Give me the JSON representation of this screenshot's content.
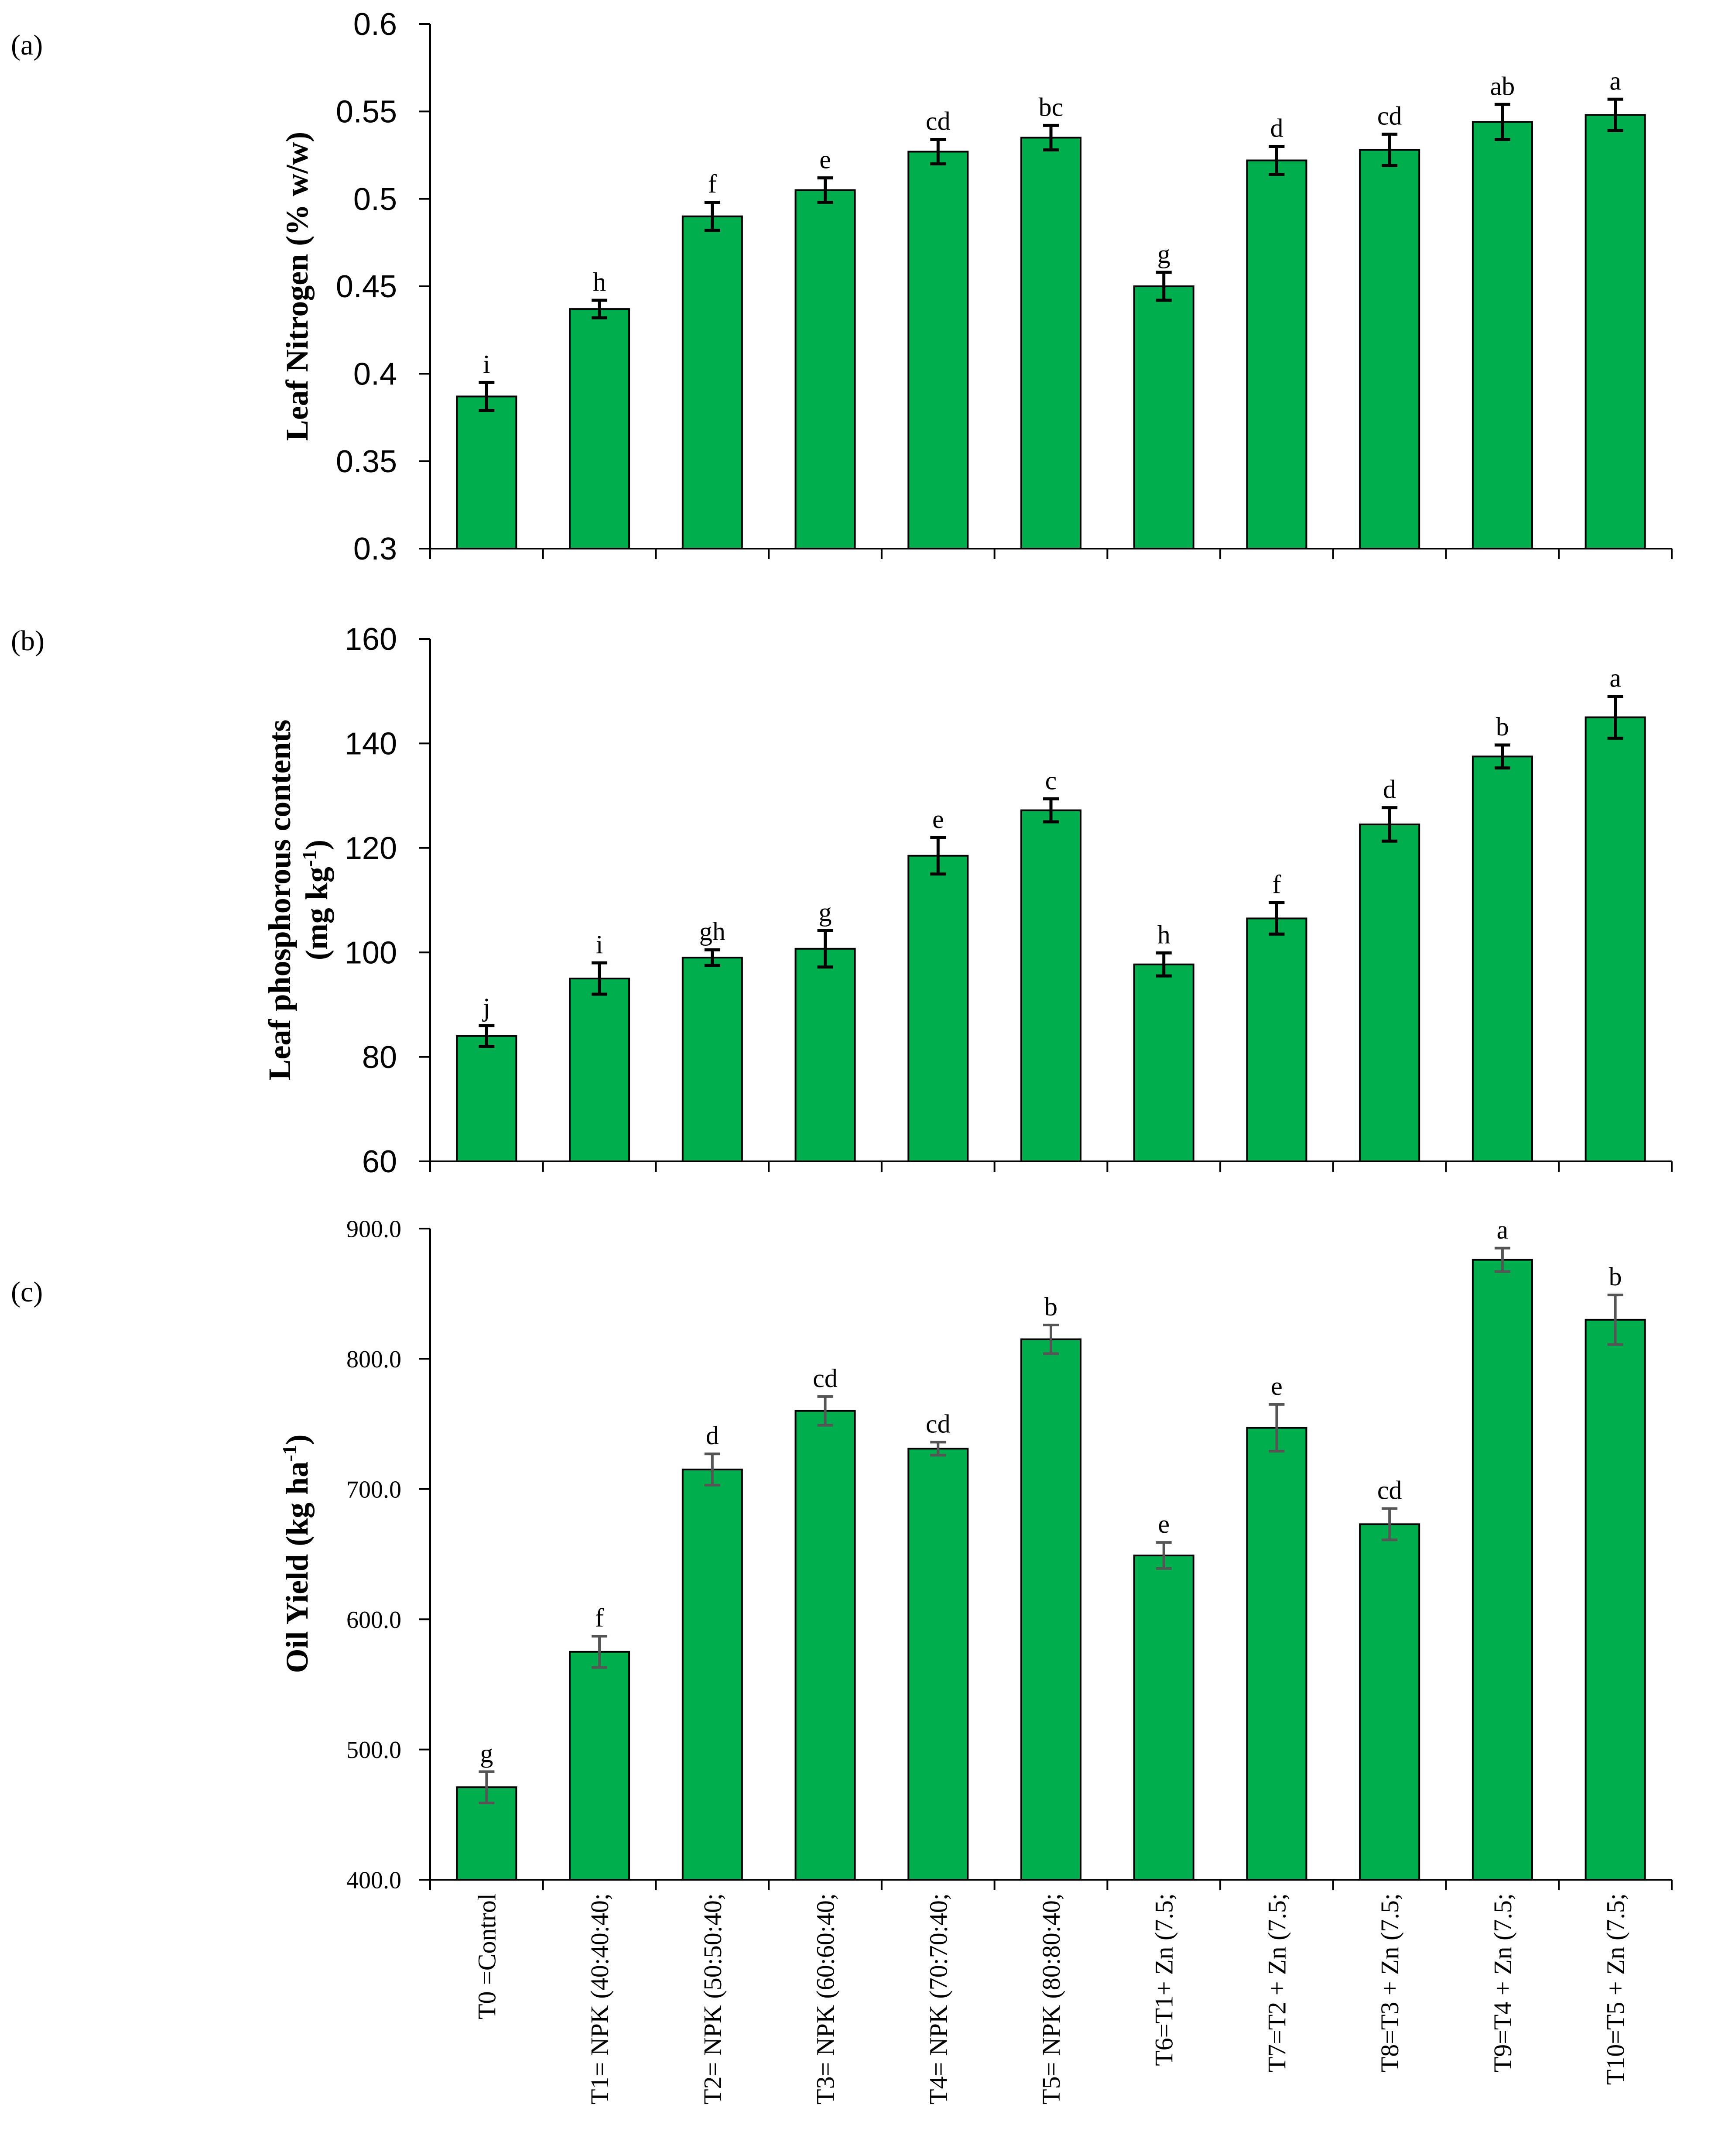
{
  "bar_color": "#00AE4D",
  "category_labels": [
    "T0 =Control",
    "T1= NPK (40:40:40;",
    "T2= NPK (50:50:40;",
    "T3= NPK (60:60:40;",
    "T4= NPK (70:70:40;",
    "T5= NPK (80:80:40;",
    "T6=T1+ Zn (7.5;",
    "T7=T2 + Zn (7.5;",
    "T8=T3 + Zn (7.5;",
    "T9=T4 + Zn (7.5;",
    "T10=T5 + Zn (7.5;"
  ],
  "chart_data": [
    {
      "type": "bar",
      "panel_label": "(a)",
      "ylabel": "Leaf Nitrogen (% w/w)",
      "ylim": [
        0.3,
        0.6
      ],
      "yticks": [
        0.3,
        0.35,
        0.4,
        0.45,
        0.5,
        0.55,
        0.6
      ],
      "ytick_labels": [
        "0.3",
        "0.35",
        "0.4",
        "0.45",
        "0.5",
        "0.55",
        "0.6"
      ],
      "categories": [
        "T0 =Control",
        "T1= NPK (40:40:40;",
        "T2= NPK (50:50:40;",
        "T3= NPK (60:60:40;",
        "T4= NPK (70:70:40;",
        "T5= NPK (80:80:40;",
        "T6=T1+ Zn (7.5;",
        "T7=T2 + Zn (7.5;",
        "T8=T3 + Zn (7.5;",
        "T9=T4 + Zn (7.5;",
        "T10=T5 + Zn (7.5;"
      ],
      "values": [
        0.387,
        0.437,
        0.49,
        0.505,
        0.527,
        0.535,
        0.45,
        0.522,
        0.528,
        0.544,
        0.548
      ],
      "errors": [
        0.008,
        0.005,
        0.008,
        0.007,
        0.007,
        0.007,
        0.008,
        0.008,
        0.009,
        0.01,
        0.009
      ],
      "letters": [
        "i",
        "h",
        "f",
        "e",
        "cd",
        "bc",
        "g",
        "d",
        "cd",
        "ab",
        "a"
      ]
    },
    {
      "type": "bar",
      "panel_label": "(b)",
      "ylabel_line1": "Leaf phosphorous  contents",
      "ylabel_line2": "(mg kg",
      "ylabel_sup": "-1",
      "ylabel_end": ")",
      "ylim": [
        60,
        160
      ],
      "yticks": [
        60,
        80,
        100,
        120,
        140,
        160
      ],
      "ytick_labels": [
        "60",
        "80",
        "100",
        "120",
        "140",
        "160"
      ],
      "categories": [
        "T0 =Control",
        "T1= NPK (40:40:40;",
        "T2= NPK (50:50:40;",
        "T3= NPK (60:60:40;",
        "T4= NPK (70:70:40;",
        "T5= NPK (80:80:40;",
        "T6=T1+ Zn (7.5;",
        "T7=T2 + Zn (7.5;",
        "T8=T3 + Zn (7.5;",
        "T9=T4 + Zn (7.5;",
        "T10=T5 + Zn (7.5;"
      ],
      "values": [
        84.0,
        95.0,
        99.0,
        100.7,
        118.5,
        127.2,
        97.7,
        106.5,
        124.5,
        137.5,
        145.0
      ],
      "errors": [
        2.0,
        3.0,
        1.5,
        3.5,
        3.5,
        2.2,
        2.2,
        3.0,
        3.2,
        2.2,
        4.0
      ],
      "letters": [
        "j",
        "i",
        "gh",
        "g",
        "e",
        "c",
        "h",
        "f",
        "d",
        "b",
        "a"
      ]
    },
    {
      "type": "bar",
      "panel_label": "(c)",
      "ylabel_main": "Oil Yield (kg ha",
      "ylabel_sup": "-1",
      "ylabel_end": ")",
      "ylim": [
        400,
        900
      ],
      "yticks": [
        400,
        500,
        600,
        700,
        800,
        900
      ],
      "ytick_labels": [
        "400.0",
        "500.0",
        "600.0",
        "700.0",
        "800.0",
        "900.0"
      ],
      "categories": [
        "T0 =Control",
        "T1= NPK (40:40:40;",
        "T2= NPK (50:50:40;",
        "T3= NPK (60:60:40;",
        "T4= NPK (70:70:40;",
        "T5= NPK (80:80:40;",
        "T6=T1+ Zn (7.5;",
        "T7=T2 + Zn (7.5;",
        "T8=T3 + Zn (7.5;",
        "T9=T4 + Zn (7.5;",
        "T10=T5 + Zn (7.5;"
      ],
      "values": [
        471,
        575,
        715,
        760,
        731,
        815,
        649,
        747,
        673,
        876,
        830
      ],
      "errors": [
        12,
        12,
        12,
        11,
        5,
        11,
        10,
        18,
        12,
        9,
        19
      ],
      "letters": [
        "g",
        "f",
        "d",
        "cd",
        "cd",
        "b",
        "e",
        "e",
        "cd",
        "a",
        "b"
      ]
    }
  ]
}
